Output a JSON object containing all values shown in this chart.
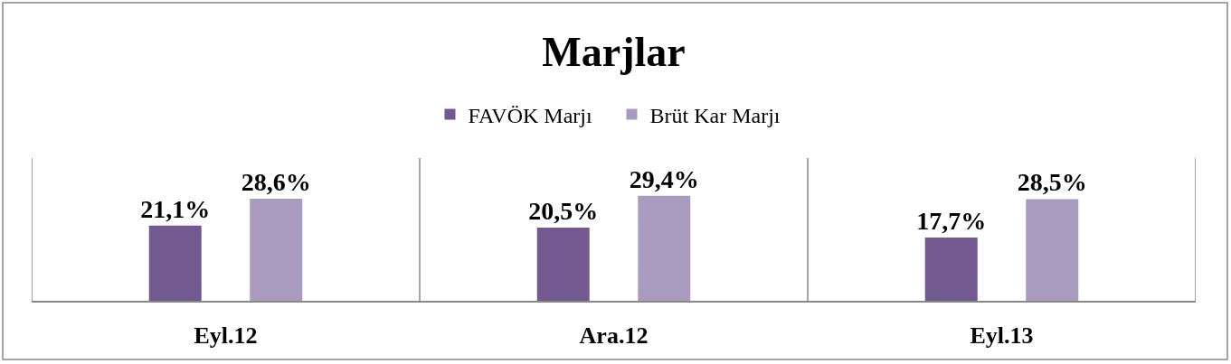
{
  "chart_data": {
    "type": "bar",
    "title": "Marjlar",
    "categories": [
      "Eyl.12",
      "Ara.12",
      "Eyl.13"
    ],
    "series": [
      {
        "name": "FAVÖK Marjı",
        "color": "#725990",
        "values": [
          21.1,
          20.5,
          17.7
        ],
        "value_labels": [
          "21,1%",
          "20,5%",
          "17,7%"
        ]
      },
      {
        "name": "Brüt Kar Marjı",
        "color": "#a99bbd",
        "values": [
          28.6,
          29.4,
          28.5
        ],
        "value_labels": [
          "28,6%",
          "29,4%",
          "28,5%"
        ]
      }
    ],
    "ylim": [
      0,
      40
    ],
    "grid": "x",
    "legend": "top",
    "tick_labels": "x"
  }
}
